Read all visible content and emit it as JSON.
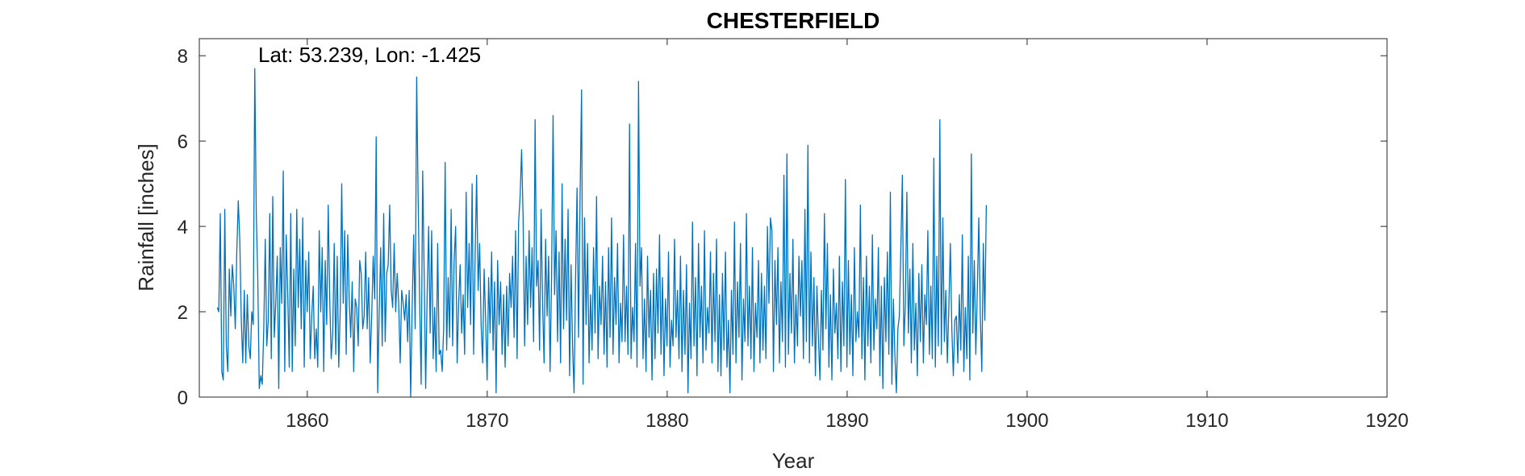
{
  "chart_data": {
    "type": "line",
    "title": "CHESTERFIELD",
    "annotation": "Lat: 53.239, Lon: -1.425",
    "xlabel": "Year",
    "ylabel": "Rainfall [inches]",
    "xlim": [
      1854,
      1920
    ],
    "ylim": [
      0,
      8.4
    ],
    "xticks": [
      1860,
      1870,
      1880,
      1890,
      1900,
      1910,
      1920
    ],
    "yticks": [
      0,
      2,
      4,
      6,
      8
    ],
    "grid": false,
    "line_color": "#0072BD",
    "x_start": 1855.0,
    "x_step_years": 0.0833,
    "series": [
      {
        "values": [
          2.1,
          2.0,
          4.3,
          0.6,
          0.4,
          4.4,
          1.2,
          0.6,
          3.0,
          1.9,
          3.1,
          2.6,
          1.6,
          3.4,
          4.6,
          3.7,
          1.8,
          0.8,
          2.5,
          0.8,
          2.4,
          1.2,
          0.9,
          2.0,
          1.7,
          7.7,
          4.3,
          2.8,
          0.2,
          0.5,
          0.3,
          1.6,
          3.7,
          1.2,
          1.8,
          4.3,
          0.9,
          4.7,
          1.4,
          2.2,
          3.3,
          0.2,
          3.5,
          2.2,
          5.3,
          0.6,
          3.8,
          2.4,
          0.7,
          4.3,
          0.6,
          3.0,
          1.2,
          4.4,
          2.1,
          3.7,
          1.6,
          4.2,
          0.7,
          3.2,
          2.0,
          3.4,
          0.9,
          1.9,
          2.6,
          0.9,
          1.6,
          0.7,
          3.9,
          2.0,
          3.5,
          0.6,
          3.2,
          1.7,
          4.5,
          2.3,
          0.9,
          1.5,
          3.6,
          1.0,
          3.3,
          0.7,
          2.0,
          5.0,
          2.2,
          3.9,
          1.0,
          3.8,
          2.3,
          1.4,
          2.7,
          0.6,
          2.3,
          2.1,
          1.2,
          3.2,
          2.9,
          1.6,
          1.9,
          3.4,
          1.6,
          2.8,
          0.8,
          1.9,
          3.3,
          2.3,
          6.1,
          0.1,
          2.0,
          3.5,
          1.2,
          4.3,
          1.3,
          2.9,
          3.1,
          4.5,
          2.5,
          2.1,
          3.6,
          2.0,
          2.9,
          2.2,
          0.8,
          2.5,
          2.2,
          1.8,
          2.4,
          1.3,
          2.5,
          0.0,
          2.1,
          3.8,
          1.6,
          7.5,
          4.6,
          2.2,
          0.3,
          5.3,
          2.9,
          0.2,
          2.4,
          4.0,
          1.5,
          3.9,
          0.9,
          2.1,
          0.6,
          3.6,
          1.0,
          1.1,
          0.6,
          1.6,
          5.5,
          1.1,
          2.8,
          1.4,
          4.4,
          1.2,
          3.2,
          4.0,
          0.8,
          2.2,
          3.1,
          1.5,
          2.4,
          1.0,
          4.8,
          2.1,
          3.6,
          1.7,
          5.0,
          1.0,
          3.3,
          5.2,
          2.5,
          3.6,
          1.7,
          0.8,
          3.0,
          1.8,
          0.4,
          2.8,
          1.5,
          3.4,
          1.1,
          2.7,
          0.1,
          3.2,
          1.7,
          2.7,
          1.0,
          2.4,
          0.7,
          2.6,
          1.2,
          2.9,
          2.1,
          3.3,
          1.4,
          3.9,
          0.9,
          4.1,
          4.7,
          5.8,
          4.2,
          1.2,
          3.3,
          1.7,
          3.9,
          2.1,
          3.5,
          1.3,
          6.5,
          2.6,
          3.2,
          1.1,
          4.4,
          2.2,
          0.8,
          3.7,
          1.9,
          3.3,
          0.6,
          2.8,
          6.6,
          2.4,
          3.9,
          1.3,
          3.4,
          0.8,
          5.0,
          1.6,
          3.7,
          1.8,
          4.4,
          0.5,
          3.1,
          1.2,
          0.1,
          2.8,
          4.9,
          1.4,
          4.7,
          7.2,
          0.3,
          4.2,
          1.7,
          3.6,
          0.8,
          2.4,
          1.1,
          3.5,
          1.5,
          4.7,
          0.9,
          2.6,
          1.7,
          3.3,
          1.0,
          2.7,
          0.7,
          3.5,
          1.4,
          4.2,
          1.0,
          2.8,
          1.7,
          3.6,
          0.8,
          2.2,
          1.3,
          3.8,
          1.3,
          2.6,
          1.0,
          6.4,
          0.9,
          2.1,
          1.3,
          3.6,
          0.7,
          7.4,
          2.6,
          3.5,
          0.9,
          2.3,
          0.6,
          3.3,
          1.4,
          2.5,
          0.4,
          2.9,
          0.9,
          3.0,
          1.5,
          3.8,
          1.0,
          2.8,
          0.5,
          2.3,
          1.2,
          3.4,
          0.7,
          1.8,
          1.2,
          3.7,
          1.4,
          2.5,
          0.9,
          3.3,
          0.6,
          2.5,
          1.0,
          3.1,
          0.1,
          2.2,
          0.9,
          4.1,
          1.2,
          2.8,
          0.5,
          3.6,
          1.4,
          2.6,
          0.8,
          3.9,
          1.1,
          2.1,
          1.5,
          3.4,
          0.8,
          2.9,
          1.3,
          3.7,
          0.6,
          2.4,
          0.5,
          2.9,
          1.1,
          3.4,
          0.7,
          1.8,
          0.1,
          2.5,
          1.0,
          4.1,
          0.8,
          2.7,
          1.4,
          3.6,
          0.4,
          2.3,
          1.3,
          4.3,
          1.2,
          2.6,
          0.9,
          3.5,
          0.6,
          2.2,
          1.4,
          3.2,
          0.8,
          2.9,
          1.1,
          2.6,
          0.9,
          4.0,
          2.2,
          4.2,
          3.9,
          0.6,
          3.2,
          1.7,
          3.5,
          0.8,
          2.7,
          1.3,
          5.2,
          0.7,
          5.7,
          1.0,
          2.9,
          1.5,
          3.7,
          0.8,
          2.4,
          1.2,
          3.3,
          1.9,
          3.2,
          0.9,
          4.4,
          1.3,
          5.9,
          0.8,
          3.4,
          1.2,
          2.8,
          0.5,
          2.6,
          1.4,
          0.4,
          2.5,
          1.1,
          4.3,
          1.6,
          3.6,
          0.7,
          2.4,
          0.4,
          3.0,
          1.5,
          2.2,
          0.9,
          3.3,
          0.6,
          2.7,
          1.2,
          5.1,
          0.7,
          3.2,
          1.0,
          2.4,
          0.5,
          3.5,
          1.3,
          2.0,
          1.4,
          4.5,
          0.9,
          2.8,
          0.4,
          3.3,
          1.2,
          2.6,
          0.8,
          3.8,
          1.1,
          2.3,
          1.6,
          3.5,
          0.5,
          2.6,
          0.2,
          2.8,
          1.3,
          3.4,
          1.0,
          4.8,
          0.3,
          2.3,
          1.0,
          0.1,
          1.6,
          1.9,
          3.5,
          5.2,
          1.2,
          2.2,
          4.8,
          1.5,
          3.0,
          0.8,
          3.6,
          1.1,
          2.2,
          0.5,
          2.9,
          1.3,
          3.1,
          0.8,
          2.4,
          1.7,
          3.9,
          1.0,
          2.6,
          0.9,
          5.6,
          0.7,
          3.3,
          1.2,
          6.5,
          1.0,
          4.2,
          1.3,
          2.5,
          0.8,
          2.1,
          3.6,
          1.6,
          0.5,
          1.8,
          1.9,
          0.8,
          2.4,
          1.1,
          3.8,
          0.6,
          2.1,
          0.9,
          3.3,
          0.4,
          5.7,
          1.5,
          3.2,
          1.0,
          2.5,
          4.2,
          1.9,
          0.6,
          3.6,
          1.8,
          4.5
        ]
      }
    ]
  }
}
